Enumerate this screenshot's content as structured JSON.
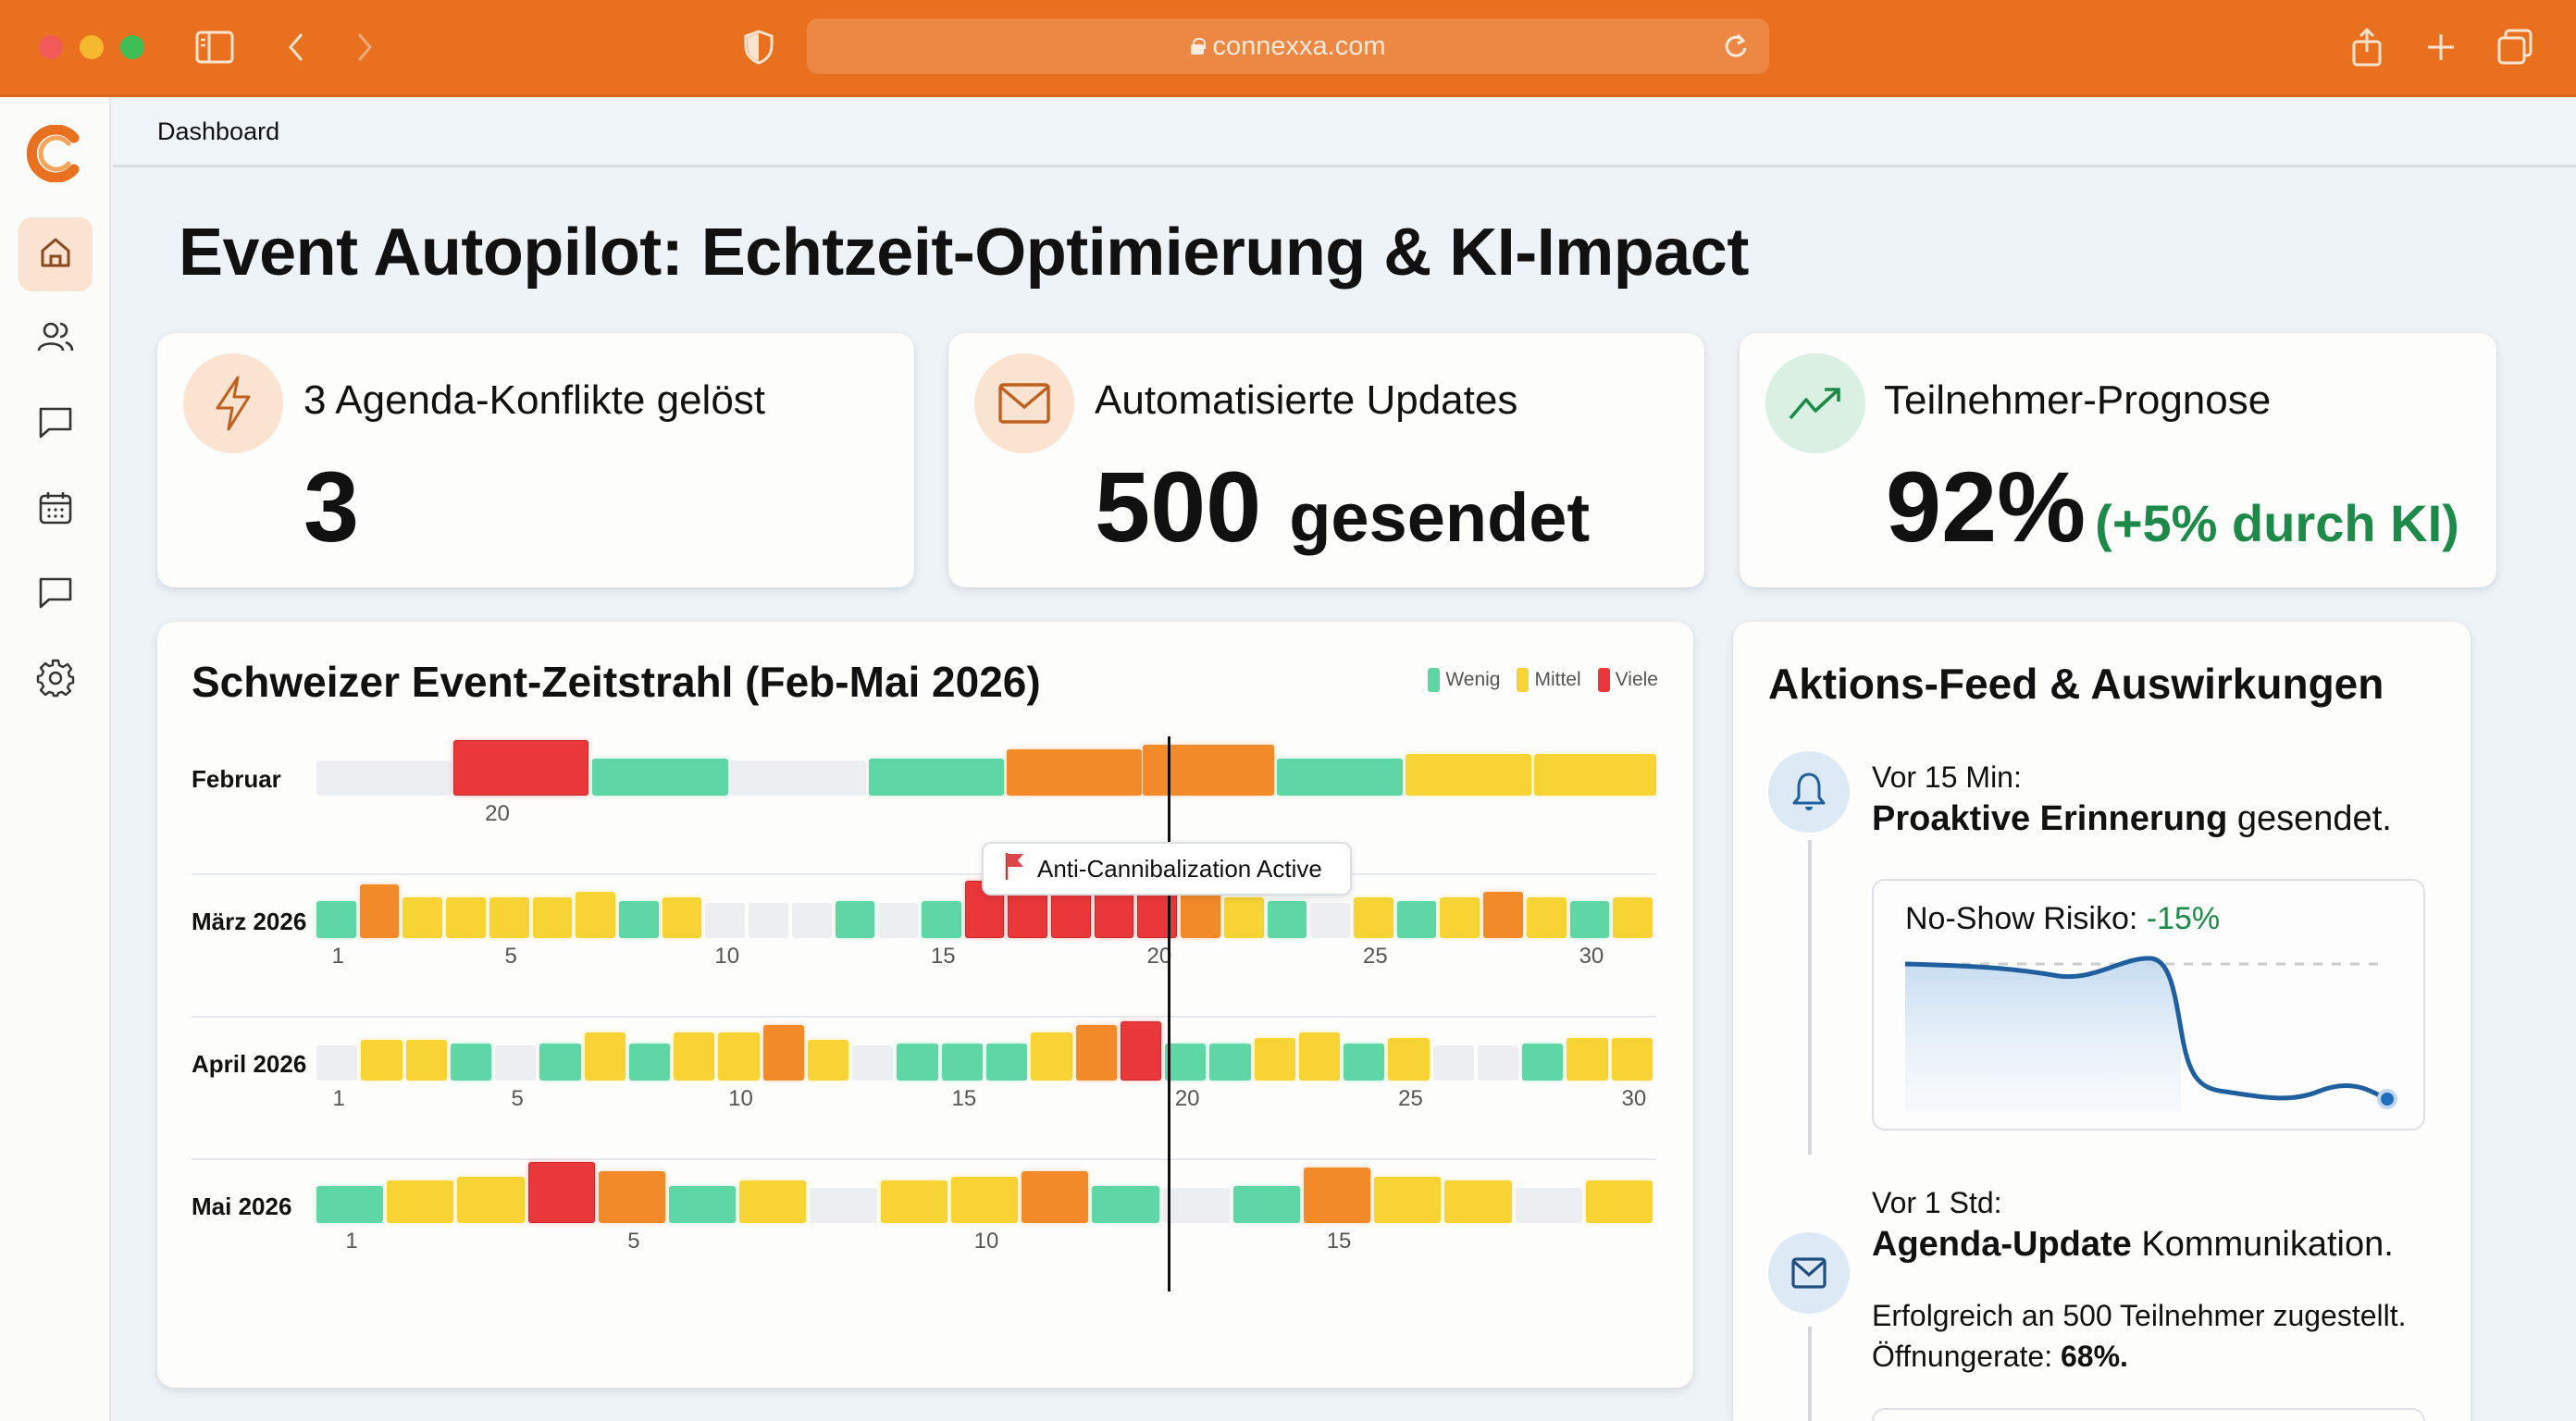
{
  "browser": {
    "url": "connexxa.com",
    "icons": [
      "sidebar-toggle-icon",
      "back-icon",
      "forward-icon",
      "shield-icon",
      "lock-icon",
      "reload-icon",
      "share-icon",
      "new-tab-icon",
      "tabs-overview-icon"
    ]
  },
  "sidebar": {
    "logo": "connexxa-logo",
    "items": [
      {
        "name": "home",
        "icon": "home-icon",
        "active": true
      },
      {
        "name": "users",
        "icon": "users-icon",
        "active": false
      },
      {
        "name": "messages",
        "icon": "chat-icon",
        "active": false
      },
      {
        "name": "calendar",
        "icon": "calendar-icon",
        "active": false
      },
      {
        "name": "comments",
        "icon": "chat-icon",
        "active": false
      },
      {
        "name": "settings",
        "icon": "gear-icon",
        "active": false
      }
    ]
  },
  "header": {
    "breadcrumb": "Dashboard"
  },
  "page": {
    "title": "Event Autopilot: Echtzeit-Optimierung & KI-Impact"
  },
  "kpis": [
    {
      "icon": "lightning-icon",
      "label": "3 Agenda-Konflikte gelöst",
      "value": "3",
      "suffix": "",
      "delta": ""
    },
    {
      "icon": "mail-icon",
      "label": "Automatisierte Updates",
      "value": "500",
      "suffix": "gesendet",
      "delta": ""
    },
    {
      "icon": "trend-up-icon",
      "label": "Teilnehmer-Prognose",
      "value": "92%",
      "suffix": "",
      "delta": "(+5% durch KI)"
    }
  ],
  "colors": {
    "brand": "#E8701E",
    "wenig": "#5ED6A5",
    "mittel": "#F7D333",
    "hoch": "#F28A2A",
    "viele": "#E9373A",
    "empty": "#ECEEF1",
    "positive": "#1E8A4A",
    "chart_line": "#1F5F9E"
  },
  "timeline": {
    "title": "Schweizer Event-Zeitstrahl (Feb-Mai 2026)",
    "legend": [
      {
        "label": "Wenig",
        "color": "#5ED6A5"
      },
      {
        "label": "Mittel",
        "color": "#F7D333"
      },
      {
        "label": "Viele",
        "color": "#E9373A"
      }
    ],
    "callout": "Anti-Cannibalization Active",
    "rows": [
      {
        "month": "Februar",
        "ticks": [
          {
            "label": "20",
            "pos": 0.085
          }
        ],
        "segments": [
          {
            "x": 0.0,
            "w": 0.101,
            "level": "empty",
            "h": 38
          },
          {
            "x": 0.102,
            "w": 0.101,
            "level": "red",
            "h": 60
          },
          {
            "x": 0.206,
            "w": 0.101,
            "level": "green",
            "h": 40
          },
          {
            "x": 0.309,
            "w": 0.101,
            "level": "empty",
            "h": 38
          },
          {
            "x": 0.412,
            "w": 0.101,
            "level": "green",
            "h": 40
          },
          {
            "x": 0.515,
            "w": 0.101,
            "level": "orange",
            "h": 50
          },
          {
            "x": 0.617,
            "w": 0.098,
            "level": "orange",
            "h": 55
          },
          {
            "x": 0.717,
            "w": 0.094,
            "level": "green",
            "h": 40
          },
          {
            "x": 0.813,
            "w": 0.094,
            "level": "yellow",
            "h": 45
          },
          {
            "x": 0.909,
            "w": 0.091,
            "level": "yellow",
            "h": 45
          }
        ]
      },
      {
        "month": "März 2026",
        "days": 31,
        "ticks": [
          {
            "label": "1",
            "day": 1
          },
          {
            "label": "5",
            "day": 5
          },
          {
            "label": "10",
            "day": 10
          },
          {
            "label": "15",
            "day": 15
          },
          {
            "label": "20",
            "day": 20
          },
          {
            "label": "25",
            "day": 25
          },
          {
            "label": "30",
            "day": 30
          }
        ],
        "levels": [
          "green",
          "orange",
          "yellow",
          "yellow",
          "yellow",
          "yellow",
          "yellow",
          "green",
          "yellow",
          "empty",
          "empty",
          "empty",
          "green",
          "empty",
          "green",
          "red",
          "red",
          "red",
          "red",
          "red",
          "orange",
          "yellow",
          "green",
          "empty",
          "yellow",
          "green",
          "yellow",
          "orange",
          "yellow",
          "green",
          "yellow"
        ],
        "heights": [
          40,
          58,
          44,
          44,
          44,
          44,
          50,
          40,
          44,
          38,
          38,
          38,
          40,
          38,
          40,
          62,
          62,
          62,
          62,
          66,
          50,
          44,
          40,
          38,
          44,
          40,
          44,
          50,
          44,
          40,
          44
        ]
      },
      {
        "month": "April 2026",
        "days": 30,
        "ticks": [
          {
            "label": "1",
            "day": 1
          },
          {
            "label": "5",
            "day": 5
          },
          {
            "label": "10",
            "day": 10
          },
          {
            "label": "15",
            "day": 15
          },
          {
            "label": "20",
            "day": 20
          },
          {
            "label": "25",
            "day": 25
          },
          {
            "label": "30",
            "day": 30
          }
        ],
        "levels": [
          "empty",
          "yellow",
          "yellow",
          "green",
          "empty",
          "green",
          "yellow",
          "green",
          "yellow",
          "yellow",
          "orange",
          "yellow",
          "empty",
          "green",
          "green",
          "green",
          "yellow",
          "orange",
          "red",
          "green",
          "green",
          "yellow",
          "yellow",
          "green",
          "yellow",
          "empty",
          "empty",
          "green",
          "yellow",
          "yellow"
        ],
        "heights": [
          38,
          44,
          44,
          40,
          38,
          40,
          52,
          40,
          52,
          52,
          60,
          44,
          38,
          40,
          40,
          40,
          52,
          60,
          64,
          40,
          40,
          46,
          52,
          40,
          46,
          38,
          38,
          40,
          46,
          46
        ]
      },
      {
        "month": "Mai 2026",
        "days": 19,
        "ticks": [
          {
            "label": "1",
            "day": 1
          },
          {
            "label": "5",
            "day": 5
          },
          {
            "label": "10",
            "day": 10
          },
          {
            "label": "15",
            "day": 15
          }
        ],
        "levels": [
          "green",
          "yellow",
          "yellow",
          "red",
          "orange",
          "green",
          "yellow",
          "empty",
          "yellow",
          "yellow",
          "orange",
          "green",
          "empty",
          "green",
          "orange",
          "yellow",
          "yellow",
          "empty",
          "yellow"
        ],
        "heights": [
          40,
          46,
          50,
          66,
          56,
          40,
          46,
          38,
          46,
          50,
          56,
          40,
          38,
          40,
          60,
          50,
          46,
          38,
          46
        ]
      }
    ]
  },
  "chart_data": {
    "type": "heatmap",
    "title": "Schweizer Event-Zeitstrahl (Feb-Mai 2026)",
    "legend": [
      "Wenig",
      "Mittel",
      "Viele"
    ],
    "rows": [
      "Februar",
      "März 2026",
      "April 2026",
      "Mai 2026"
    ],
    "scale": {
      "empty": 0,
      "green": 1,
      "yellow": 2,
      "orange": 3,
      "red": 4
    },
    "annotation": "Anti-Cannibalization Active (marker around day 19/20)"
  },
  "feed": {
    "title": "Aktions-Feed & Auswirkungen",
    "items": [
      {
        "icon": "bell-icon",
        "time": "Vor 15 Min:",
        "bold": "Proaktive Erinnerung",
        "rest": " gesendet.",
        "chart": {
          "label": "No-Show Risiko:",
          "value": "-15%"
        }
      },
      {
        "icon": "mail-icon",
        "time": "Vor 1 Std:",
        "bold": "Agenda-Update",
        "rest": " Kommunikation.",
        "detail_line1": "Erfolgreich an 500 Teilnehmer zugestellt.",
        "detail_line2_prefix": "Öffnungerate: ",
        "detail_line2_value": "68%."
      }
    ]
  }
}
